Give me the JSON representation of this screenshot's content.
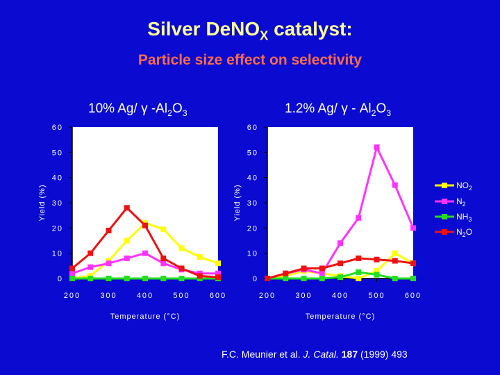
{
  "slide": {
    "title_main": "Silver DeNO",
    "title_sub": "X",
    "title_end": " catalyst:",
    "subtitle": "Particle size effect on selectivity",
    "citation": {
      "authors": "F.C. Meunier et al. ",
      "journal": "J. Catal.",
      "volume": "187",
      "rest": " (1999) 493"
    }
  },
  "colors": {
    "background": "#0a0ad0",
    "NO2": "#ffff00",
    "N2": "#ff33ff",
    "NH3": "#22dd22",
    "N2O": "#ee1111"
  },
  "chart_data": [
    {
      "type": "line",
      "title_parts": [
        "10% Ag/ ",
        "γ",
        " -Al",
        "2",
        "O",
        "3"
      ],
      "xlabel": "Temperature (°C)",
      "ylabel": "Yield (%)",
      "xlim": [
        200,
        600
      ],
      "ylim": [
        0,
        60
      ],
      "xticks": [
        "200",
        "300",
        "400",
        "500",
        "600"
      ],
      "yticks": [
        "0",
        "10",
        "20",
        "30",
        "40",
        "50",
        "60"
      ],
      "series": [
        {
          "name": "NO2",
          "x": [
            200,
            250,
            300,
            350,
            400,
            450,
            500,
            550,
            600
          ],
          "y": [
            0,
            1,
            7,
            15,
            22,
            19.5,
            12,
            8.5,
            6
          ]
        },
        {
          "name": "N2",
          "x": [
            200,
            250,
            300,
            350,
            400,
            450,
            500,
            550,
            600
          ],
          "y": [
            2,
            4.5,
            6,
            8,
            10,
            6,
            3.5,
            2,
            2
          ]
        },
        {
          "name": "NH3",
          "x": [
            200,
            250,
            300,
            350,
            400,
            450,
            500,
            550,
            600
          ],
          "y": [
            0,
            0,
            0,
            0,
            0,
            0,
            0,
            0,
            0
          ]
        },
        {
          "name": "N2O",
          "x": [
            200,
            250,
            300,
            350,
            400,
            450,
            500,
            550,
            600
          ],
          "y": [
            4,
            10,
            19,
            28,
            21,
            8,
            4,
            1,
            0.5
          ]
        }
      ]
    },
    {
      "type": "line",
      "title_parts": [
        "1.2% Ag/ ",
        "γ",
        " - Al",
        "2",
        "O",
        "3"
      ],
      "xlabel": "Temperature (°C)",
      "ylabel": "Yield (%)",
      "xlim": [
        200,
        600
      ],
      "ylim": [
        0,
        60
      ],
      "xticks": [
        "200",
        "300",
        "400",
        "500",
        "600"
      ],
      "yticks": [
        "0",
        "10",
        "20",
        "30",
        "40",
        "50",
        "60"
      ],
      "series": [
        {
          "name": "NO2",
          "x": [
            200,
            250,
            300,
            350,
            400,
            450,
            500,
            550,
            600
          ],
          "y": [
            0,
            1,
            3,
            2,
            1,
            0,
            3,
            10,
            6
          ]
        },
        {
          "name": "N2",
          "x": [
            200,
            250,
            300,
            350,
            400,
            450,
            500,
            550,
            600
          ],
          "y": [
            0,
            2,
            3.5,
            2,
            14,
            24,
            52,
            37,
            20
          ]
        },
        {
          "name": "NH3",
          "x": [
            200,
            250,
            300,
            350,
            400,
            450,
            500,
            550,
            600
          ],
          "y": [
            0,
            0,
            0,
            0,
            0.5,
            2.5,
            1.5,
            0,
            0
          ]
        },
        {
          "name": "N2O",
          "x": [
            200,
            250,
            300,
            350,
            400,
            450,
            500,
            550,
            600
          ],
          "y": [
            0,
            2,
            4,
            4,
            6,
            8,
            7.5,
            7,
            6
          ]
        }
      ]
    }
  ],
  "legend": [
    {
      "name": "NO",
      "sub": "2",
      "series": "NO2"
    },
    {
      "name": "N",
      "sub": "2",
      "series": "N2"
    },
    {
      "name": "NH",
      "sub": "3",
      "series": "NH3"
    },
    {
      "name": "N",
      "sub": "2",
      "name2": "O",
      "series": "N2O"
    }
  ]
}
